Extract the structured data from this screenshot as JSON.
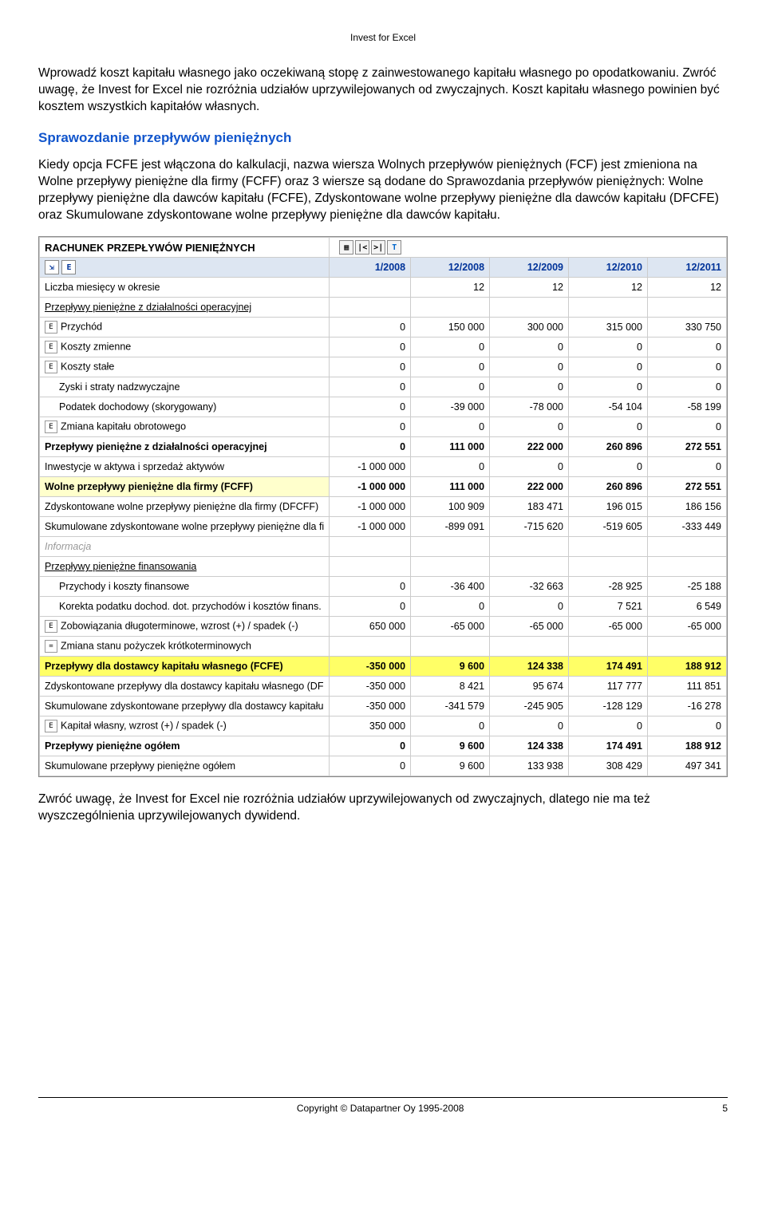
{
  "header": {
    "title": "Invest for Excel"
  },
  "para1": "Wprowadź koszt kapitału własnego jako oczekiwaną stopę z zainwestowanego kapitału własnego  po opodatkowaniu. Zwróć uwagę, że Invest for Excel nie rozróżnia udziałów uprzywilejowanych od zwyczajnych. Koszt kapitału własnego powinien być kosztem wszystkich kapitałów własnych.",
  "section": "Sprawozdanie przepływów pieniężnych",
  "para2": "Kiedy opcja FCFE jest włączona do kalkulacji, nazwa wiersza Wolnych przepływów pieniężnych (FCF) jest zmieniona na Wolne przepływy pieniężne dla firmy (FCFF) oraz 3 wiersze są dodane do Sprawozdania przepływów pieniężnych: Wolne przepływy pieniężne dla dawców kapitału (FCFE), Zdyskontowane wolne przepływy pieniężne dla dawców kapitału (DFCFE) oraz Skumulowane zdyskontowane wolne przepływy pieniężne dla dawców kapitału.",
  "table": {
    "title": "RACHUNEK PRZEPŁYWÓW PIENIĘŻNYCH",
    "headers": [
      "1/2008",
      "12/2008",
      "12/2009",
      "12/2010",
      "12/2011"
    ],
    "rows": [
      {
        "label": "Liczba miesięcy w okresie",
        "vals": [
          "",
          "12",
          "12",
          "12",
          "12"
        ]
      },
      {
        "label": "Przepływy pieniężne z działalności operacyjnej",
        "ul": true
      },
      {
        "label": "Przychód",
        "e": true,
        "vals": [
          "0",
          "150 000",
          "300 000",
          "315 000",
          "330 750"
        ]
      },
      {
        "label": "Koszty zmienne",
        "e": true,
        "vals": [
          "0",
          "0",
          "0",
          "0",
          "0"
        ]
      },
      {
        "label": "Koszty stałe",
        "e": true,
        "vals": [
          "0",
          "0",
          "0",
          "0",
          "0"
        ]
      },
      {
        "label": "Zyski i straty nadzwyczajne",
        "indent": true,
        "vals": [
          "0",
          "0",
          "0",
          "0",
          "0"
        ]
      },
      {
        "label": "Podatek dochodowy (skorygowany)",
        "indent": true,
        "vals": [
          "0",
          "-39 000",
          "-78 000",
          "-54 104",
          "-58 199"
        ]
      },
      {
        "label": "Zmiana kapitału obrotowego",
        "e": true,
        "vals": [
          "0",
          "0",
          "0",
          "0",
          "0"
        ]
      },
      {
        "label": "Przepływy pieniężne z działalności operacyjnej",
        "bold": true,
        "vals": [
          "0",
          "111 000",
          "222 000",
          "260 896",
          "272 551"
        ]
      },
      {
        "label": "Inwestycje w aktywa i sprzedaż aktywów",
        "vals": [
          "-1 000 000",
          "0",
          "0",
          "0",
          "0"
        ]
      },
      {
        "label": "Wolne przepływy pieniężne dla firmy (FCFF)",
        "hl": "light",
        "bold": true,
        "vals": [
          "-1 000 000",
          "111 000",
          "222 000",
          "260 896",
          "272 551"
        ]
      },
      {
        "label": "Zdyskontowane wolne przepływy pieniężne dla firmy (DFCFF)",
        "vals": [
          "-1 000 000",
          "100 909",
          "183 471",
          "196 015",
          "186 156"
        ]
      },
      {
        "label": "Skumulowane zdyskontowane wolne przepływy pieniężne dla fi",
        "vals": [
          "-1 000 000",
          "-899 091",
          "-715 620",
          "-519 605",
          "-333 449"
        ]
      },
      {
        "label": "Informacja",
        "gray": true
      },
      {
        "label": "Przepływy pieniężne finansowania",
        "ul": true
      },
      {
        "label": "Przychody i koszty finansowe",
        "indent": true,
        "vals": [
          "0",
          "-36 400",
          "-32 663",
          "-28 925",
          "-25 188"
        ]
      },
      {
        "label": "Korekta podatku dochod. dot. przychodów i kosztów finans.",
        "indent": true,
        "vals": [
          "0",
          "0",
          "0",
          "7 521",
          "6 549"
        ]
      },
      {
        "label": "Zobowiązania długoterminowe, wzrost (+) / spadek (-)",
        "e": true,
        "vals": [
          "650 000",
          "-65 000",
          "-65 000",
          "-65 000",
          "-65 000"
        ]
      },
      {
        "label": "Zmiana stanu pożyczek krótkoterminowych",
        "eq": true,
        "vals": [
          "",
          "",
          "",
          "",
          ""
        ]
      },
      {
        "label": "Przepływy dla dostawcy kapitału własnego (FCFE)",
        "hl": "strong",
        "vals": [
          "-350 000",
          "9 600",
          "124 338",
          "174 491",
          "188 912"
        ]
      },
      {
        "label": "Zdyskontowane przepływy dla dostawcy kapitału własnego (DF",
        "vals": [
          "-350 000",
          "8 421",
          "95 674",
          "117 777",
          "111 851"
        ]
      },
      {
        "label": "Skumulowane zdyskontowane przepływy dla dostawcy kapitału",
        "vals": [
          "-350 000",
          "-341 579",
          "-245 905",
          "-128 129",
          "-16 278"
        ]
      },
      {
        "label": "Kapitał własny, wzrost (+) / spadek (-)",
        "e": true,
        "vals": [
          "350 000",
          "0",
          "0",
          "0",
          "0"
        ]
      },
      {
        "label": "Przepływy pieniężne ogółem",
        "bold": true,
        "vals": [
          "0",
          "9 600",
          "124 338",
          "174 491",
          "188 912"
        ]
      },
      {
        "label": "Skumulowane przepływy pieniężne ogółem",
        "vals": [
          "0",
          "9 600",
          "133 938",
          "308 429",
          "497 341"
        ]
      }
    ]
  },
  "para3": "Zwróć uwagę, że Invest for Excel nie rozróżnia udziałów uprzywilejowanych od zwyczajnych, dlatego nie ma też wyszczególnienia uprzywilejowanych dywidend.",
  "footer": {
    "copyright": "Copyright © Datapartner Oy 1995-2008",
    "page": "5"
  }
}
